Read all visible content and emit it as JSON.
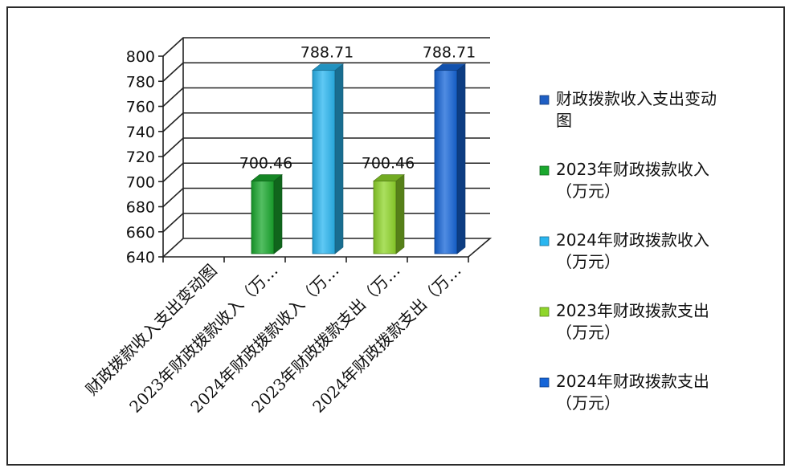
{
  "chart_data": {
    "type": "bar",
    "title": "",
    "xlabel": "",
    "ylabel": "",
    "ylim": [
      640,
      800
    ],
    "ytick_step": 20,
    "grid": true,
    "legend_position": "right",
    "categories": [
      "财政拨款收入支出变动图",
      "2023年财政拨款收入（万…",
      "2024年财政拨款收入（万…",
      "2023年财政拨款支出（万…",
      "2024年财政拨款支出（万…"
    ],
    "values": [
      null,
      700.46,
      788.71,
      700.46,
      788.71
    ],
    "value_labels": [
      "",
      "700.46",
      "788.71",
      "700.46",
      "788.71"
    ],
    "colors": [
      "#1f5fc4",
      "#1aa82e",
      "#29b6f0",
      "#8fd62a",
      "#1565d8"
    ],
    "legend": [
      {
        "lines": [
          "财政拨款收入支出变动",
          "图"
        ],
        "color": "#1f5fc4"
      },
      {
        "lines": [
          "2023年财政拨款收入",
          "（万元）"
        ],
        "color": "#1aa82e"
      },
      {
        "lines": [
          "2024年财政拨款收入",
          "（万元）"
        ],
        "color": "#29b6f0"
      },
      {
        "lines": [
          "2023年财政拨款支出",
          "（万元）"
        ],
        "color": "#8fd62a"
      },
      {
        "lines": [
          "2024年财政拨款支出",
          "（万元）"
        ],
        "color": "#1565d8"
      }
    ]
  }
}
